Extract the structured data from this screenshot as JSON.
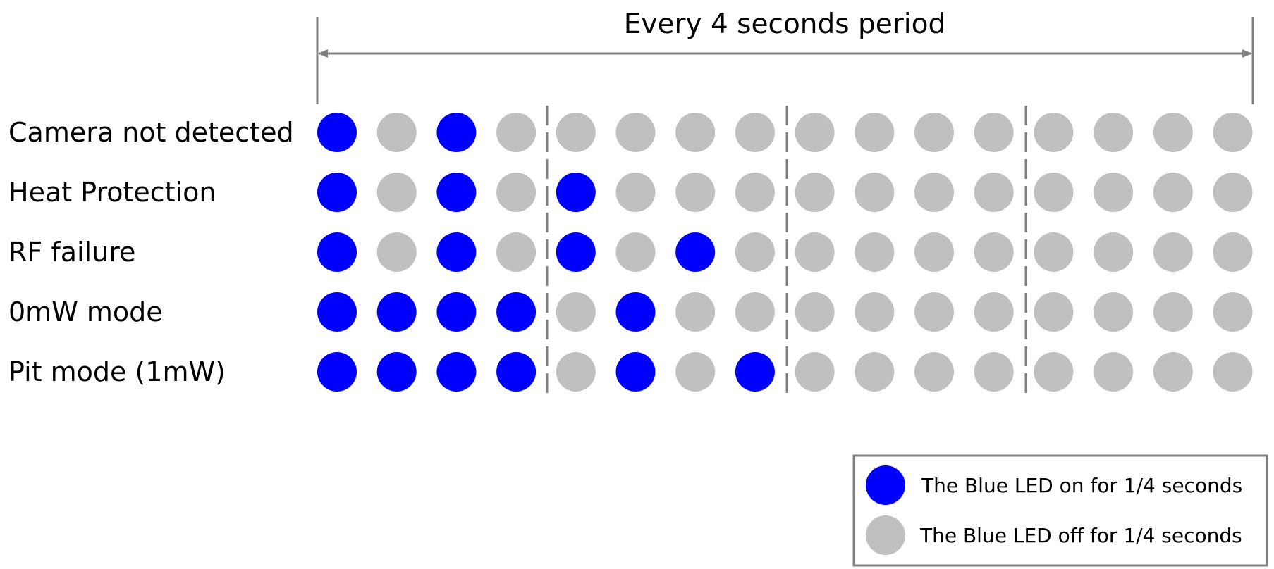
{
  "period_label": "Every 4 seconds period",
  "colors": {
    "on": "#0000ff",
    "off": "#c0c0c0",
    "lines": "#808080"
  },
  "rows": [
    {
      "label": "Camera not detected",
      "pattern": [
        1,
        0,
        1,
        0,
        0,
        0,
        0,
        0,
        0,
        0,
        0,
        0,
        0,
        0,
        0,
        0
      ]
    },
    {
      "label": "Heat Protection",
      "pattern": [
        1,
        0,
        1,
        0,
        1,
        0,
        0,
        0,
        0,
        0,
        0,
        0,
        0,
        0,
        0,
        0
      ]
    },
    {
      "label": "RF failure",
      "pattern": [
        1,
        0,
        1,
        0,
        1,
        0,
        1,
        0,
        0,
        0,
        0,
        0,
        0,
        0,
        0,
        0
      ]
    },
    {
      "label": "0mW mode",
      "pattern": [
        1,
        1,
        1,
        1,
        0,
        1,
        0,
        0,
        0,
        0,
        0,
        0,
        0,
        0,
        0,
        0
      ]
    },
    {
      "label": "Pit mode (1mW)",
      "pattern": [
        1,
        1,
        1,
        1,
        0,
        1,
        0,
        1,
        0,
        0,
        0,
        0,
        0,
        0,
        0,
        0
      ]
    }
  ],
  "legend": {
    "on_label": "The Blue LED on for 1/4 seconds",
    "off_label": "The Blue LED off for 1/4 seconds"
  }
}
